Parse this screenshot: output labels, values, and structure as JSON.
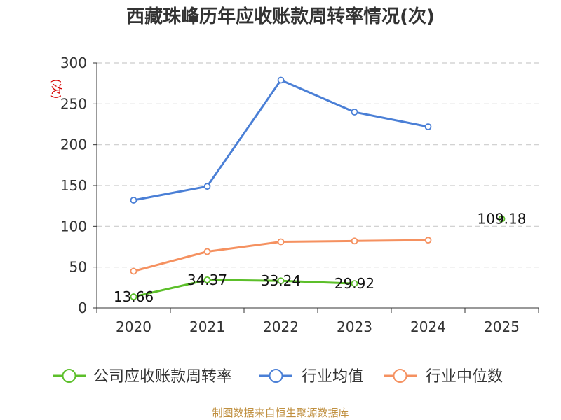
{
  "chart_data": {
    "type": "line",
    "title": "西藏珠峰历年应收账款周转率情况(次)",
    "ylabel": "(次)",
    "xlabel": "",
    "categories": [
      "2020",
      "2021",
      "2022",
      "2023",
      "2024",
      "2025"
    ],
    "ylim": [
      0,
      300
    ],
    "yticks": [
      0,
      50,
      100,
      150,
      200,
      250,
      300
    ],
    "grid": true,
    "legend_position": "bottom",
    "series": [
      {
        "name": "公司应收账款周转率",
        "color": "#5cbf2a",
        "values": [
          13.66,
          34.37,
          33.24,
          29.92,
          null,
          109.18
        ],
        "labels": [
          "13.66",
          "34.37",
          "33.24",
          "29.92",
          null,
          "109.18"
        ]
      },
      {
        "name": "行业均值",
        "color": "#4a7fd6",
        "values": [
          132,
          149,
          279,
          240,
          222,
          null
        ]
      },
      {
        "name": "行业中位数",
        "color": "#f59160",
        "values": [
          45,
          69,
          81,
          82,
          83,
          null
        ]
      }
    ],
    "source": "制图数据来自恒生聚源数据库"
  }
}
